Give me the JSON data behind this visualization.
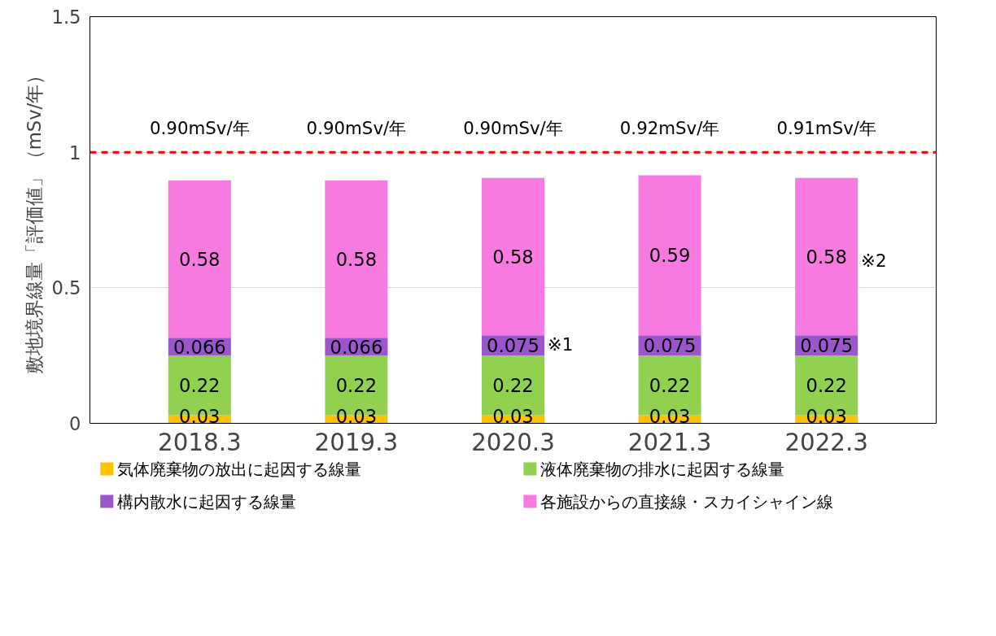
{
  "chart_data": {
    "type": "bar",
    "stacked": true,
    "ylabel": "敷地境界線量「評価値」（mSv/年）",
    "categories": [
      "2018.3",
      "2019.3",
      "2020.3",
      "2021.3",
      "2022.3"
    ],
    "series": [
      {
        "name": "気体廃棄物の放出に起因する線量",
        "color": "#ffc000",
        "values": [
          0.03,
          0.03,
          0.03,
          0.03,
          0.03
        ]
      },
      {
        "name": "液体廃棄物の排水に起因する線量",
        "color": "#92d050",
        "values": [
          0.22,
          0.22,
          0.22,
          0.22,
          0.22
        ]
      },
      {
        "name": "構内散水に起因する線量",
        "color": "#9b55cd",
        "values": [
          0.066,
          0.066,
          0.075,
          0.075,
          0.075
        ]
      },
      {
        "name": "各施設からの直接線・スカイシャイン線",
        "color": "#f77ae0",
        "values": [
          0.58,
          0.58,
          0.58,
          0.59,
          0.58
        ]
      }
    ],
    "ylim": [
      0,
      1.5
    ],
    "yticks": [
      0,
      0.5,
      1,
      1.5
    ],
    "grid": "y",
    "legend": "bottom",
    "data_labels": true,
    "totals": [
      "0.90mSv/年",
      "0.90mSv/年",
      "0.90mSv/年",
      "0.92mSv/年",
      "0.91mSv/年"
    ],
    "ref_lines": [
      {
        "axis": "y",
        "value": 1,
        "color": "#ff0000",
        "line_style": "dashed"
      }
    ],
    "annotations": [
      "※1",
      "※2"
    ]
  }
}
